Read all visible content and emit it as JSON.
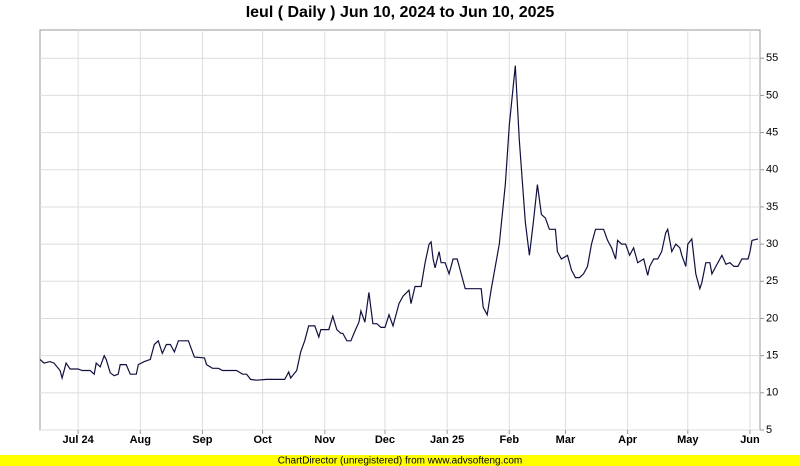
{
  "chart_data": {
    "type": "line",
    "title": "Ieul ( Daily ) Jun 10, 2024 to Jun 10, 2025",
    "footer": "ChartDirector (unregistered) from www.advsofteng.com",
    "color": "#101040",
    "grid": true,
    "xlim": [
      2,
      361
    ],
    "xticks": [
      {
        "value": 21,
        "label": "Jul 24"
      },
      {
        "value": 52,
        "label": "Aug"
      },
      {
        "value": 83,
        "label": "Sep"
      },
      {
        "value": 113,
        "label": "Oct"
      },
      {
        "value": 144,
        "label": "Nov"
      },
      {
        "value": 174,
        "label": "Dec"
      },
      {
        "value": 205,
        "label": "Jan 25"
      },
      {
        "value": 236,
        "label": "Feb"
      },
      {
        "value": 264,
        "label": "Mar"
      },
      {
        "value": 295,
        "label": "Apr"
      },
      {
        "value": 325,
        "label": "May"
      },
      {
        "value": 356,
        "label": "Jun"
      }
    ],
    "ylim": [
      5,
      58.8
    ],
    "yticks": [
      5,
      10,
      15,
      20,
      25,
      30,
      35,
      40,
      45,
      50,
      55
    ],
    "x": [
      2,
      4,
      7,
      9,
      12,
      13,
      15,
      17,
      21,
      23,
      27,
      29,
      30,
      32,
      34,
      35,
      37,
      39,
      41,
      42,
      45,
      47,
      50,
      51,
      54,
      57,
      59,
      61,
      63,
      65,
      67,
      69,
      71,
      76,
      79,
      84,
      85,
      88,
      91,
      93,
      100,
      103,
      105,
      107,
      110,
      115,
      124,
      126,
      127,
      130,
      132,
      134,
      136,
      139,
      141,
      142,
      146,
      148,
      150,
      152,
      153,
      155,
      157,
      159,
      161,
      162,
      164,
      166,
      168,
      170,
      172,
      174,
      176,
      178,
      181,
      183,
      186,
      187,
      189,
      192,
      194,
      196,
      197,
      198,
      199,
      201,
      202,
      204,
      206,
      208,
      210,
      212,
      214,
      217,
      222,
      223,
      225,
      227,
      231,
      234,
      236,
      239,
      241,
      244,
      246,
      248,
      250,
      252,
      254,
      256,
      259,
      260,
      262,
      265,
      267,
      269,
      271,
      273,
      275,
      277,
      279,
      281,
      283,
      285,
      287,
      289,
      290,
      292,
      294,
      296,
      298,
      300,
      303,
      305,
      306,
      308,
      310,
      312,
      314,
      315,
      317,
      319,
      321,
      322,
      324,
      325,
      327,
      329,
      331,
      332,
      334,
      336,
      337,
      339,
      342,
      344,
      346,
      348,
      350,
      352,
      355,
      356,
      357,
      360
    ],
    "values": [
      14.5,
      14,
      14.2,
      14,
      13,
      12,
      14,
      13.2,
      13.2,
      13,
      13,
      12.5,
      14,
      13.5,
      15,
      14.5,
      12.7,
      12.3,
      12.5,
      13.8,
      13.8,
      12.5,
      12.5,
      13.8,
      14.2,
      14.5,
      16.5,
      17,
      15.3,
      16.5,
      16.5,
      15.5,
      17,
      17,
      14.8,
      14.7,
      13.8,
      13.3,
      13.3,
      13,
      13,
      12.5,
      12.5,
      11.8,
      11.7,
      11.8,
      11.8,
      12.8,
      12,
      13,
      15.5,
      17,
      19,
      19,
      17.5,
      18.5,
      18.5,
      20.3,
      18.5,
      18,
      18,
      17,
      17,
      18.3,
      19.5,
      21,
      19.5,
      23.5,
      19.3,
      19.3,
      18.8,
      18.8,
      20.5,
      19,
      22,
      23,
      23.8,
      22,
      24.3,
      24.3,
      27.5,
      30,
      30.3,
      28,
      26.8,
      29,
      27.5,
      27.5,
      26,
      28,
      28,
      26,
      24,
      24,
      24,
      21.5,
      20.5,
      24,
      30,
      38,
      46,
      54,
      44,
      33,
      28.5,
      33,
      38,
      34,
      33.5,
      32,
      32,
      29,
      28,
      28.5,
      26.5,
      25.5,
      25.5,
      26,
      27,
      30,
      32,
      32,
      32,
      30.5,
      29.5,
      28,
      30.5,
      30,
      30,
      28.5,
      29.5,
      27.5,
      28,
      25.8,
      27,
      28,
      28,
      29,
      31.5,
      32,
      29,
      30,
      29.5,
      28.5,
      27,
      30,
      30.7,
      26,
      24,
      24.8,
      27.5,
      27.5,
      26,
      27,
      28.5,
      27.3,
      27.5,
      27,
      27,
      28,
      28,
      29,
      30.5,
      30.7
    ]
  }
}
